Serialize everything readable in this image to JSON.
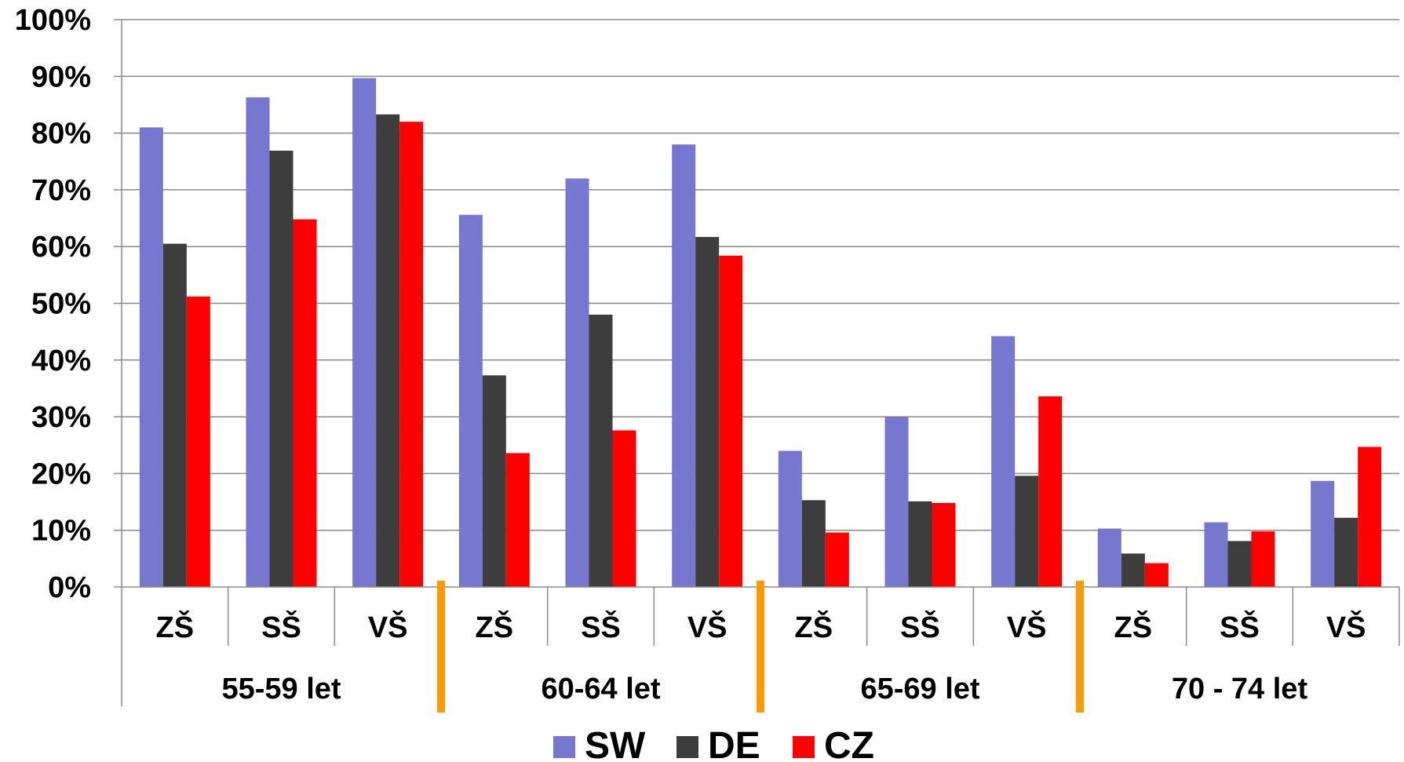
{
  "chart_data": {
    "type": "bar",
    "groups": [
      {
        "label": "55-59 let",
        "categories": [
          "ZŠ",
          "SŠ",
          "VŠ"
        ]
      },
      {
        "label": "60-64 let",
        "categories": [
          "ZŠ",
          "SŠ",
          "VŠ"
        ]
      },
      {
        "label": "65-69 let",
        "categories": [
          "ZŠ",
          "SŠ",
          "VŠ"
        ]
      },
      {
        "label": "70 - 74 let",
        "categories": [
          "ZŠ",
          "SŠ",
          "VŠ"
        ]
      }
    ],
    "series": [
      {
        "name": "SW",
        "color": "#7777d0",
        "values": [
          81,
          86.3,
          89.7,
          65.6,
          72,
          78,
          24,
          30,
          44.2,
          10.3,
          11.4,
          18.7
        ]
      },
      {
        "name": "DE",
        "color": "#3d3d3d",
        "values": [
          60.5,
          76.9,
          83.3,
          37.3,
          48,
          61.7,
          15.3,
          15.1,
          19.6,
          5.9,
          8.1,
          12.2
        ]
      },
      {
        "name": "CZ",
        "color": "#ff0000",
        "values": [
          51.2,
          64.8,
          82,
          23.6,
          27.6,
          58.4,
          9.6,
          14.8,
          33.6,
          4.2,
          9.8,
          24.7
        ]
      }
    ],
    "yticks": [
      "0%",
      "10%",
      "20%",
      "30%",
      "40%",
      "50%",
      "60%",
      "70%",
      "80%",
      "90%",
      "100%"
    ],
    "ylim": [
      0,
      100
    ],
    "grid": true,
    "legend": "bottom",
    "group_separator_color": "#ff9900"
  }
}
